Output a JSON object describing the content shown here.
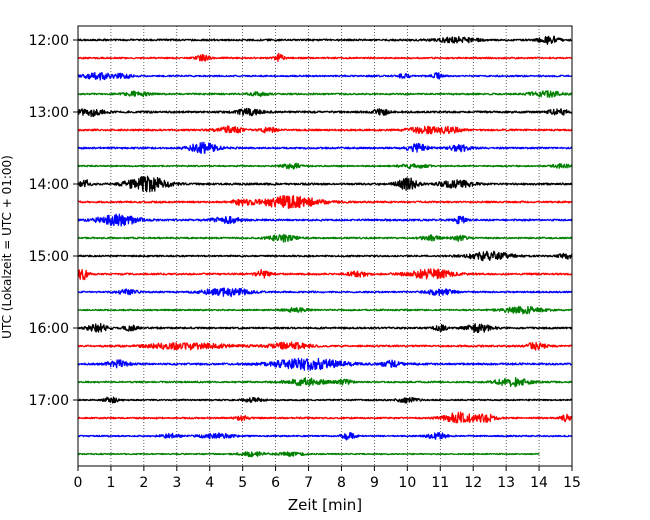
{
  "chart_data": {
    "type": "line",
    "title": "",
    "xlabel": "Zeit  [min]",
    "ylabel": "UTC (Lokalzeit = UTC + 01:00)",
    "xlim": [
      0,
      15
    ],
    "x_ticks": [
      0,
      1,
      2,
      3,
      4,
      5,
      6,
      7,
      8,
      9,
      10,
      11,
      12,
      13,
      14,
      15
    ],
    "y_tick_labels": [
      "12:00",
      "13:00",
      "14:00",
      "15:00",
      "16:00",
      "17:00"
    ],
    "grid_x": true,
    "grid_y": false,
    "legend": "none",
    "trace_interval_minutes": 15,
    "trace_colors": [
      "#000000",
      "#ff0000",
      "#0000ff",
      "#008000"
    ],
    "traces": [
      {
        "start": "12:00",
        "color": "#000000",
        "amplitude": 0.45,
        "end_minute": 15,
        "bursts": [
          [
            11.5,
            0.4,
            0.6
          ],
          [
            14.3,
            0.6,
            0.3
          ]
        ]
      },
      {
        "start": "12:15",
        "color": "#ff0000",
        "amplitude": 0.4,
        "end_minute": 15,
        "bursts": [
          [
            3.8,
            0.5,
            0.2
          ],
          [
            6.1,
            0.7,
            0.15
          ]
        ]
      },
      {
        "start": "12:30",
        "color": "#0000ff",
        "amplitude": 0.4,
        "end_minute": 15,
        "bursts": [
          [
            0.6,
            0.6,
            0.4
          ],
          [
            1.4,
            0.4,
            0.3
          ],
          [
            9.9,
            0.5,
            0.15
          ],
          [
            10.9,
            0.5,
            0.15
          ]
        ]
      },
      {
        "start": "12:45",
        "color": "#008000",
        "amplitude": 0.4,
        "end_minute": 15,
        "bursts": [
          [
            1.8,
            0.4,
            0.4
          ],
          [
            5.5,
            0.3,
            0.3
          ],
          [
            14.2,
            0.5,
            0.5
          ]
        ]
      },
      {
        "start": "13:00",
        "color": "#000000",
        "amplitude": 0.5,
        "end_minute": 15,
        "bursts": [
          [
            0.4,
            0.5,
            0.4
          ],
          [
            5.2,
            0.4,
            0.4
          ],
          [
            9.2,
            0.5,
            0.2
          ],
          [
            14.6,
            0.4,
            0.3
          ]
        ]
      },
      {
        "start": "13:15",
        "color": "#ff0000",
        "amplitude": 0.45,
        "end_minute": 15,
        "bursts": [
          [
            4.6,
            0.5,
            0.4
          ],
          [
            5.8,
            0.5,
            0.2
          ],
          [
            10.5,
            0.5,
            0.5
          ],
          [
            11.3,
            0.4,
            0.4
          ]
        ]
      },
      {
        "start": "13:30",
        "color": "#0000ff",
        "amplitude": 0.45,
        "end_minute": 15,
        "bursts": [
          [
            3.8,
            0.8,
            0.4
          ],
          [
            10.3,
            0.6,
            0.3
          ],
          [
            11.6,
            0.5,
            0.3
          ]
        ]
      },
      {
        "start": "13:45",
        "color": "#008000",
        "amplitude": 0.35,
        "end_minute": 15,
        "bursts": [
          [
            6.5,
            0.5,
            0.3
          ],
          [
            10.2,
            0.4,
            0.4
          ],
          [
            14.7,
            0.4,
            0.3
          ]
        ]
      },
      {
        "start": "14:00",
        "color": "#000000",
        "amplitude": 0.5,
        "end_minute": 15,
        "bursts": [
          [
            0.2,
            0.6,
            0.15
          ],
          [
            2.1,
            1.0,
            0.6
          ],
          [
            10.0,
            0.8,
            0.3
          ],
          [
            11.5,
            0.5,
            0.5
          ]
        ]
      },
      {
        "start": "14:15",
        "color": "#ff0000",
        "amplitude": 0.45,
        "end_minute": 15,
        "bursts": [
          [
            6.4,
            0.9,
            0.9
          ],
          [
            5.0,
            0.4,
            0.3
          ]
        ]
      },
      {
        "start": "14:30",
        "color": "#0000ff",
        "amplitude": 0.45,
        "end_minute": 15,
        "bursts": [
          [
            1.2,
            0.8,
            0.6
          ],
          [
            4.5,
            0.5,
            0.4
          ],
          [
            11.6,
            0.6,
            0.15
          ]
        ]
      },
      {
        "start": "14:45",
        "color": "#008000",
        "amplitude": 0.4,
        "end_minute": 15,
        "bursts": [
          [
            6.2,
            0.6,
            0.4
          ],
          [
            10.7,
            0.4,
            0.3
          ],
          [
            11.6,
            0.5,
            0.2
          ]
        ]
      },
      {
        "start": "15:00",
        "color": "#000000",
        "amplitude": 0.4,
        "end_minute": 15,
        "bursts": [
          [
            12.5,
            0.7,
            0.7
          ],
          [
            14.8,
            0.5,
            0.2
          ]
        ]
      },
      {
        "start": "15:15",
        "color": "#ff0000",
        "amplitude": 0.45,
        "end_minute": 15,
        "bursts": [
          [
            0.15,
            0.9,
            0.15
          ],
          [
            5.6,
            0.6,
            0.2
          ],
          [
            10.7,
            0.7,
            0.7
          ],
          [
            8.5,
            0.4,
            0.3
          ]
        ]
      },
      {
        "start": "15:30",
        "color": "#0000ff",
        "amplitude": 0.4,
        "end_minute": 15,
        "bursts": [
          [
            4.5,
            0.7,
            0.7
          ],
          [
            1.5,
            0.4,
            0.3
          ],
          [
            11.0,
            0.5,
            0.4
          ]
        ]
      },
      {
        "start": "15:45",
        "color": "#008000",
        "amplitude": 0.35,
        "end_minute": 15,
        "bursts": [
          [
            13.5,
            0.7,
            0.6
          ],
          [
            6.6,
            0.4,
            0.4
          ]
        ]
      },
      {
        "start": "16:00",
        "color": "#000000",
        "amplitude": 0.45,
        "end_minute": 15,
        "bursts": [
          [
            0.6,
            0.6,
            0.3
          ],
          [
            1.6,
            0.4,
            0.2
          ],
          [
            12.2,
            0.6,
            0.4
          ],
          [
            11.0,
            0.4,
            0.2
          ]
        ]
      },
      {
        "start": "16:15",
        "color": "#ff0000",
        "amplitude": 0.45,
        "end_minute": 15,
        "bursts": [
          [
            3.3,
            0.5,
            1.2
          ],
          [
            6.4,
            0.5,
            0.6
          ],
          [
            13.9,
            0.5,
            0.3
          ]
        ]
      },
      {
        "start": "16:30",
        "color": "#0000ff",
        "amplitude": 0.5,
        "end_minute": 15,
        "bursts": [
          [
            7.0,
            0.8,
            1.0
          ],
          [
            1.2,
            0.5,
            0.3
          ],
          [
            9.5,
            0.4,
            0.3
          ]
        ]
      },
      {
        "start": "16:45",
        "color": "#008000",
        "amplitude": 0.4,
        "end_minute": 15,
        "bursts": [
          [
            6.9,
            0.6,
            0.6
          ],
          [
            13.2,
            0.7,
            0.5
          ],
          [
            8.1,
            0.5,
            0.2
          ]
        ]
      },
      {
        "start": "17:00",
        "color": "#000000",
        "amplitude": 0.35,
        "end_minute": 15,
        "bursts": [
          [
            1.0,
            0.6,
            0.2
          ],
          [
            5.3,
            0.4,
            0.3
          ],
          [
            10.0,
            0.5,
            0.3
          ]
        ]
      },
      {
        "start": "17:15",
        "color": "#ff0000",
        "amplitude": 0.4,
        "end_minute": 15,
        "bursts": [
          [
            11.6,
            0.9,
            0.5
          ],
          [
            12.4,
            0.6,
            0.3
          ],
          [
            14.8,
            0.6,
            0.15
          ],
          [
            5.0,
            0.4,
            0.2
          ]
        ]
      },
      {
        "start": "17:30",
        "color": "#0000ff",
        "amplitude": 0.35,
        "end_minute": 15,
        "bursts": [
          [
            4.2,
            0.5,
            0.5
          ],
          [
            8.2,
            0.7,
            0.2
          ],
          [
            10.9,
            0.6,
            0.3
          ],
          [
            2.8,
            0.4,
            0.3
          ]
        ]
      },
      {
        "start": "17:45",
        "color": "#008000",
        "amplitude": 0.3,
        "end_minute": 14,
        "bursts": [
          [
            5.3,
            0.5,
            0.4
          ],
          [
            6.5,
            0.4,
            0.4
          ]
        ]
      }
    ]
  }
}
